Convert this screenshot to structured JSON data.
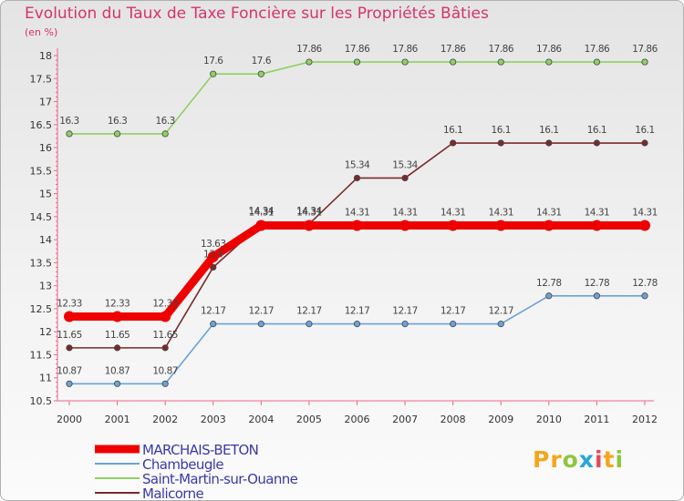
{
  "chart_data": {
    "type": "line",
    "title": "Evolution du Taux de Taxe Foncière sur les Propriétés Bâties",
    "subtitle": "(en %)",
    "xlabel": "",
    "ylabel": "",
    "ylim": [
      10.5,
      18
    ],
    "x": [
      "2000",
      "2001",
      "2002",
      "2003",
      "2004",
      "2005",
      "2006",
      "2007",
      "2008",
      "2009",
      "2010",
      "2011",
      "2012"
    ],
    "y_ticks": [
      "10.5",
      "11",
      "11.5",
      "12",
      "12.5",
      "13",
      "13.5",
      "14",
      "14.5",
      "15",
      "15.5",
      "16",
      "16.5",
      "17",
      "17.5",
      "18"
    ],
    "series": [
      {
        "name": "MARCHAIS-BETON",
        "color": "#ee0000",
        "values": [
          12.33,
          12.33,
          12.33,
          13.63,
          14.31,
          14.31,
          14.31,
          14.31,
          14.31,
          14.31,
          14.31,
          14.31,
          14.31
        ],
        "labels": [
          "12.33",
          "12.33",
          "12.33",
          "13.63",
          "14.31",
          "14.31",
          "14.31",
          "14.31",
          "14.31",
          "14.31",
          "14.31",
          "14.31",
          "14.31"
        ]
      },
      {
        "name": "Chambeugle",
        "color": "#6aa2d8",
        "values": [
          10.87,
          10.87,
          10.87,
          12.17,
          12.17,
          12.17,
          12.17,
          12.17,
          12.17,
          12.17,
          12.78,
          12.78,
          12.78
        ],
        "labels": [
          "10.87",
          "10.87",
          "10.87",
          "12.17",
          "12.17",
          "12.17",
          "12.17",
          "12.17",
          "12.17",
          "12.17",
          "12.78",
          "12.78",
          "12.78"
        ]
      },
      {
        "name": "Saint-Martin-sur-Ouanne",
        "color": "#8fd063",
        "values": [
          16.3,
          16.3,
          16.3,
          17.6,
          17.6,
          17.86,
          17.86,
          17.86,
          17.86,
          17.86,
          17.86,
          17.86,
          17.86
        ],
        "labels": [
          "16.3",
          "16.3",
          "16.3",
          "17.6",
          "17.6",
          "17.86",
          "17.86",
          "17.86",
          "17.86",
          "17.86",
          "17.86",
          "17.86",
          "17.86"
        ]
      },
      {
        "name": "Malicorne",
        "color": "#7a2a2a",
        "values": [
          11.65,
          11.65,
          11.65,
          13.4,
          14.34,
          14.34,
          15.34,
          15.34,
          16.1,
          16.1,
          16.1,
          16.1,
          16.1
        ],
        "labels": [
          "11.65",
          "11.65",
          "11.65",
          "13.4",
          "14.34",
          "14.34",
          "15.34",
          "15.34",
          "16.1",
          "16.1",
          "16.1",
          "16.1",
          "16.1"
        ]
      }
    ],
    "legend": "bottom-left",
    "grid": false
  },
  "brand": {
    "letters": [
      "P",
      "r",
      "o",
      "x",
      "i",
      "t",
      "i"
    ],
    "colors": [
      "#f5a51d",
      "#f5a51d",
      "#8fc63e",
      "#2aa6d8",
      "#e8485a",
      "#f5a51d",
      "#8fc63e"
    ]
  }
}
